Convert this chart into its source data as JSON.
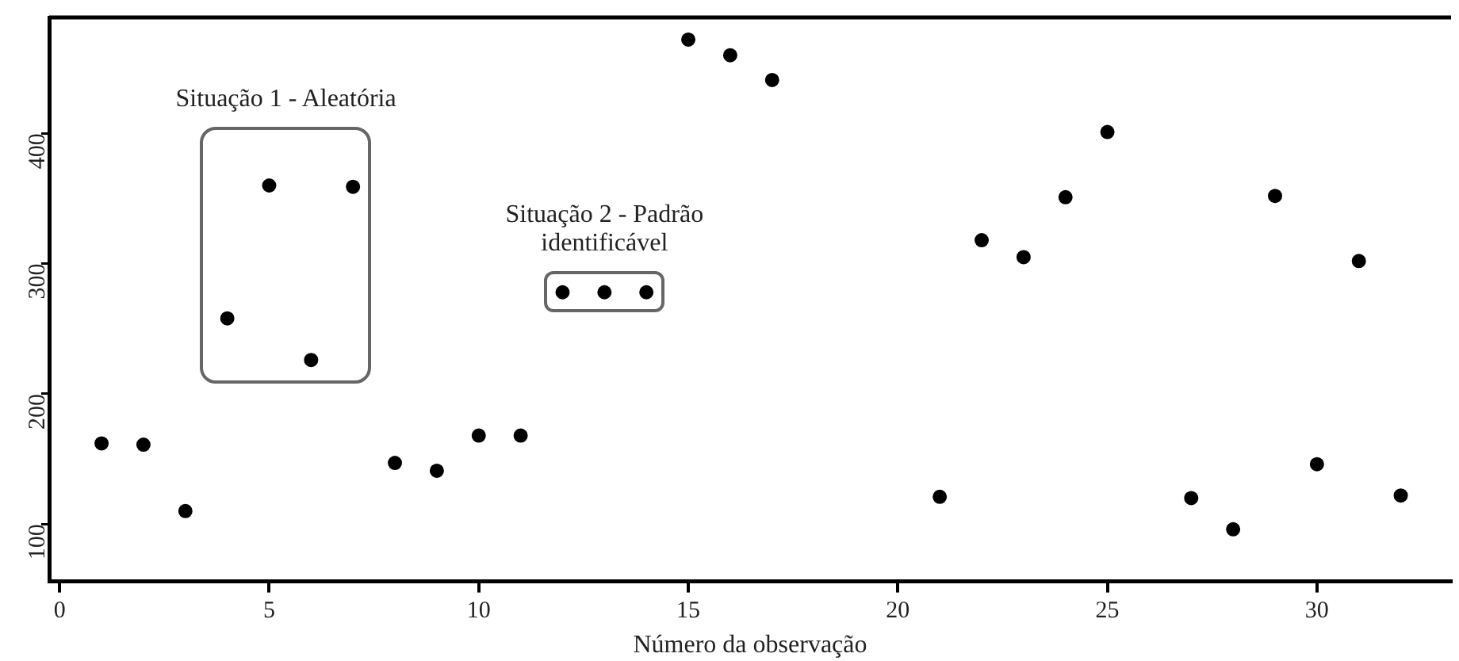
{
  "chart_data": {
    "type": "scatter",
    "xlabel": "Número da observação",
    "x": [
      1,
      2,
      3,
      4,
      5,
      6,
      7,
      8,
      9,
      10,
      11,
      12,
      13,
      14,
      15,
      16,
      17,
      21,
      22,
      23,
      24,
      25,
      27,
      28,
      29,
      30,
      31,
      32
    ],
    "series": [
      {
        "color": "#000000",
        "values": [
          162,
          161,
          110,
          258,
          360,
          226,
          359,
          147,
          141,
          168,
          168,
          278,
          278,
          278,
          472,
          460,
          441,
          121,
          318,
          305,
          351,
          401,
          120,
          96,
          352,
          146,
          302,
          122
        ]
      }
    ],
    "xlim": [
      -0.25,
      33.2
    ],
    "xticks": [
      0,
      5,
      10,
      15,
      20,
      25,
      30
    ],
    "ylim": [
      56,
      489
    ],
    "yticks": [
      100,
      200,
      300,
      400
    ],
    "annotations": [
      "Situação 1 - Aleatória",
      "Situação 2 - Padrão identificável"
    ],
    "grid": false,
    "legend": false,
    "marker": "circle"
  }
}
